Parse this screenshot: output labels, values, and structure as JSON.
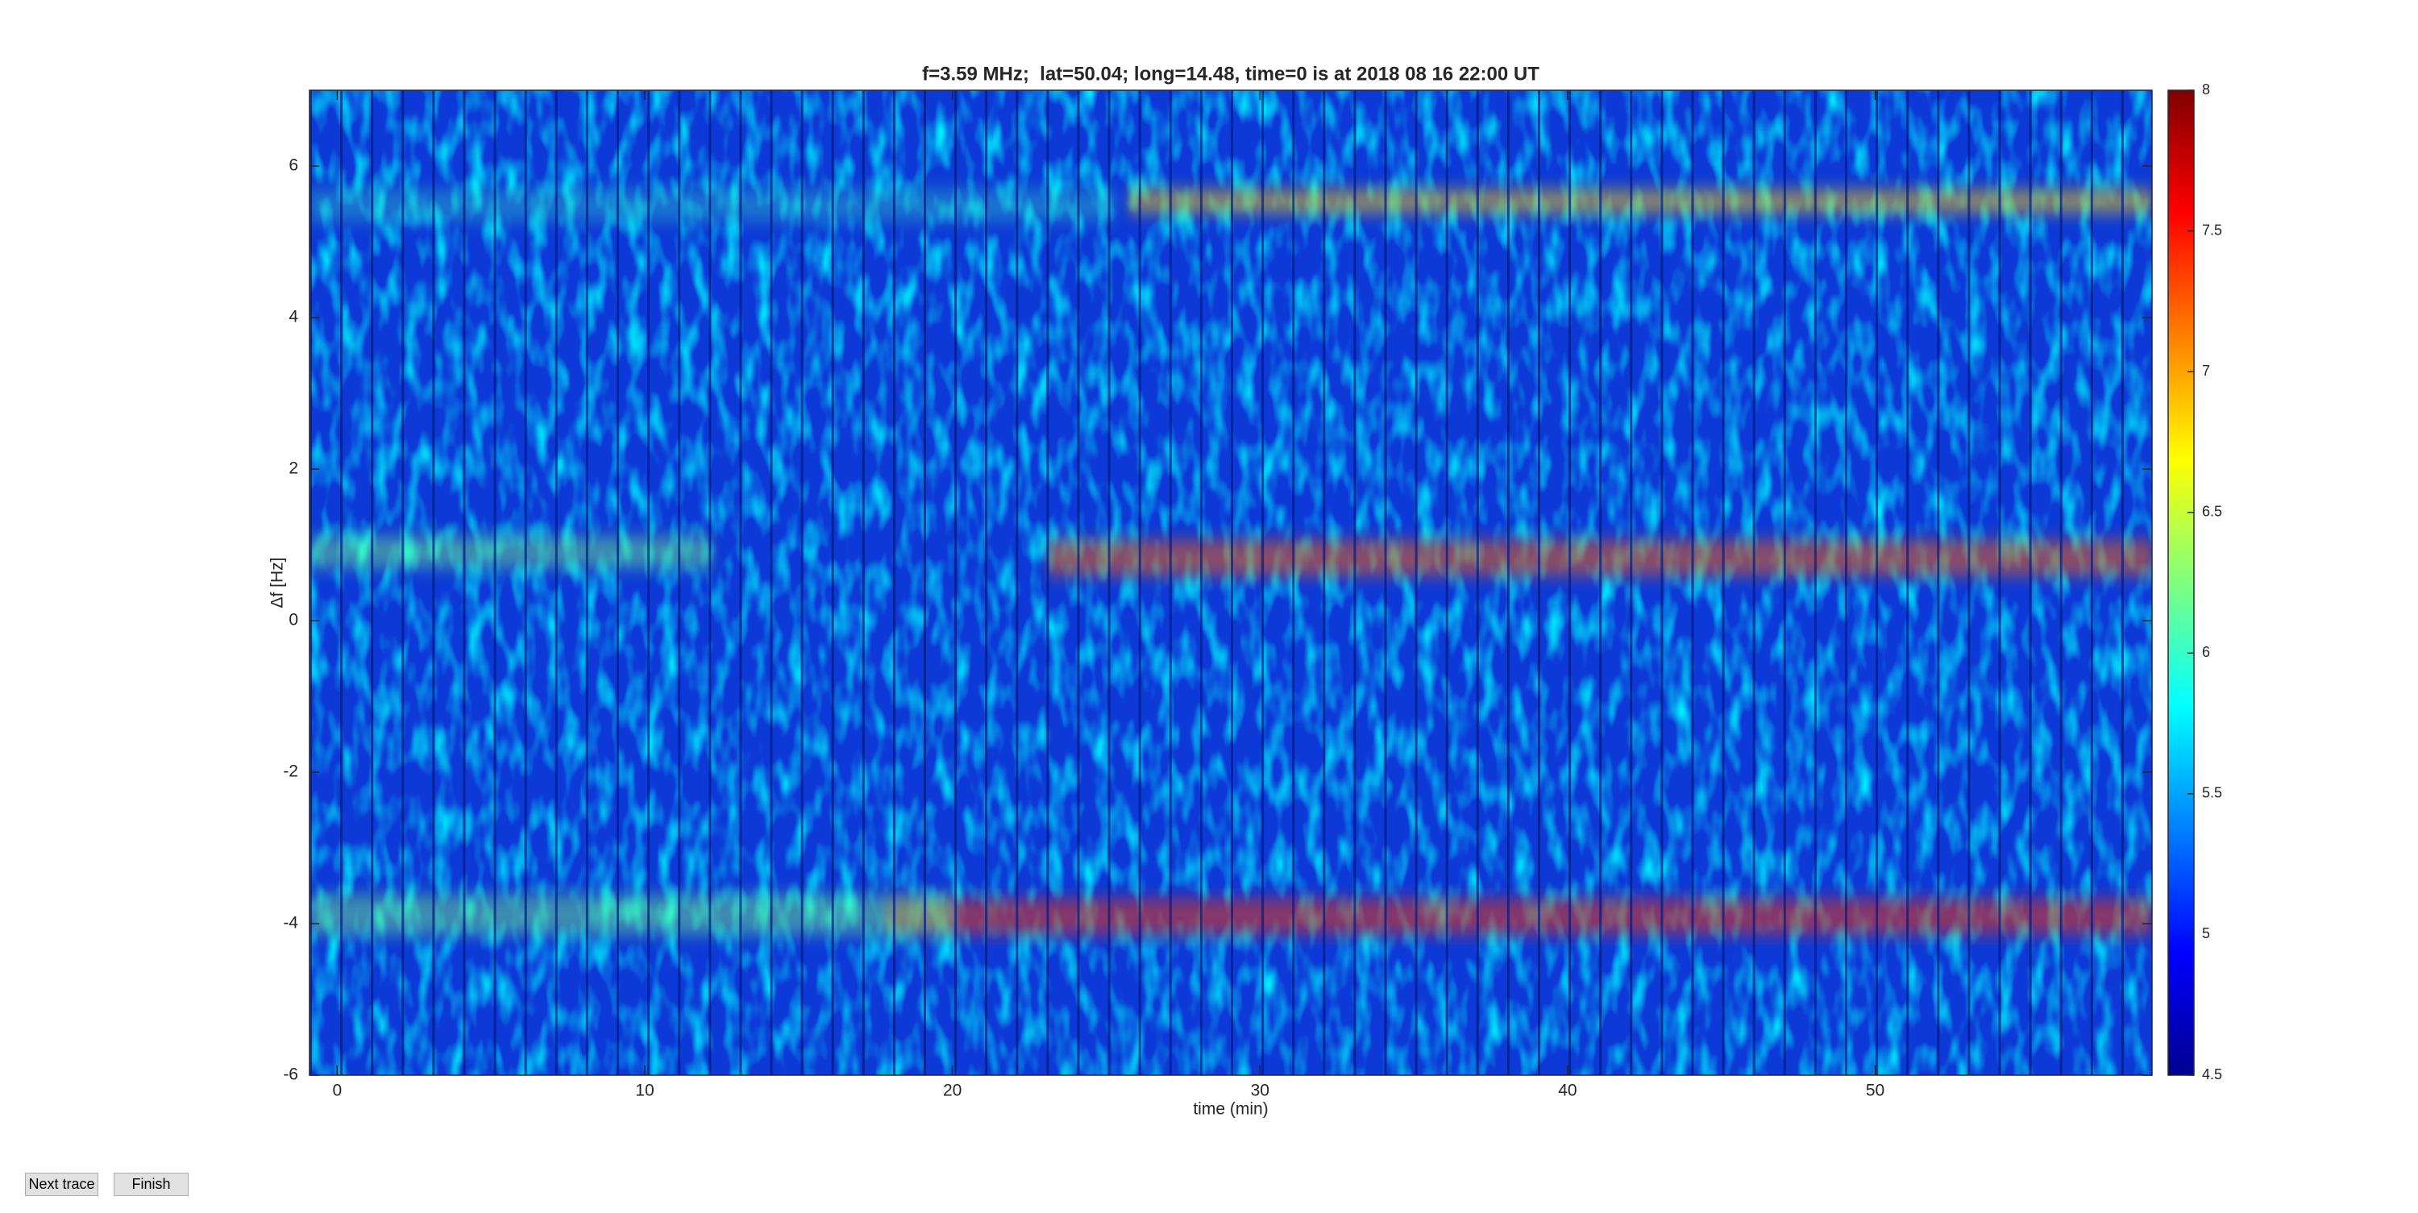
{
  "chart_data": {
    "type": "heatmap",
    "title": "f=3.59 MHz;  lat=50.04; long=14.48, time=0 is at 2018 08 16 22:00 UT",
    "xlabel": "time (min)",
    "ylabel": "Δf [Hz]",
    "xlim": [
      -0.9,
      59
    ],
    "xticks": [
      0,
      10,
      20,
      30,
      40,
      50
    ],
    "ylim": [
      -6,
      7
    ],
    "yticks": [
      -6,
      -4,
      -2,
      0,
      2,
      4,
      6
    ],
    "colorbar": {
      "lim": [
        4.5,
        8
      ],
      "ticks": [
        4.5,
        5,
        5.5,
        6,
        6.5,
        7,
        7.5,
        8
      ]
    }
  },
  "controls": [
    "Next trace",
    "Finish"
  ]
}
